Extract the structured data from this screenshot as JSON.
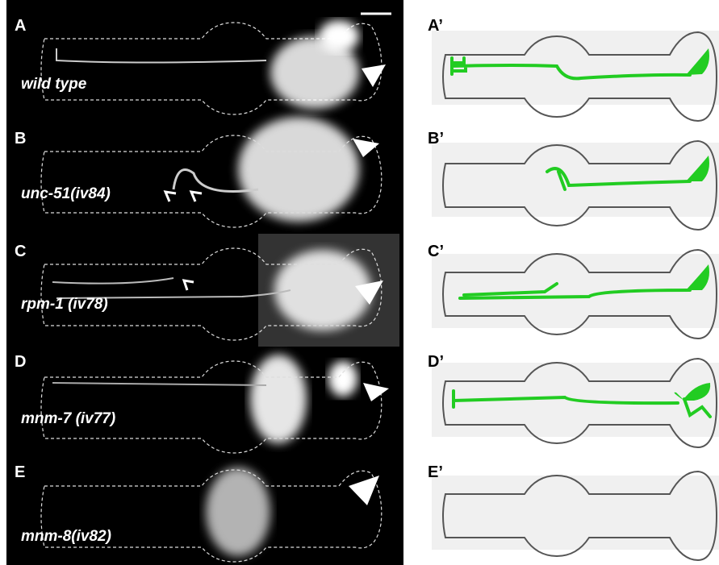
{
  "panels": [
    {
      "letter": "A",
      "genotype": "wild type",
      "schematic_letter": "A’"
    },
    {
      "letter": "B",
      "genotype": "unc-51(iv84)",
      "schematic_letter": "B’"
    },
    {
      "letter": "C",
      "genotype": "rpm-1 (iv78)",
      "schematic_letter": "C’"
    },
    {
      "letter": "D",
      "genotype": "mnm-7 (iv77)",
      "schematic_letter": "D’"
    },
    {
      "letter": "E",
      "genotype": "mnm-8(iv82)",
      "schematic_letter": "E’"
    }
  ]
}
